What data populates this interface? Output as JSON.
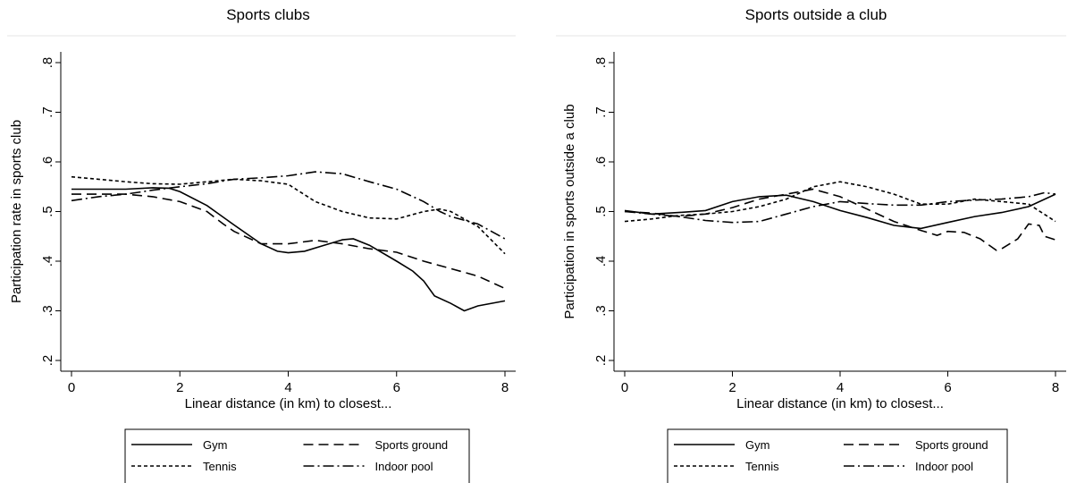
{
  "chart_data": [
    {
      "type": "line",
      "title": "Sports clubs",
      "xlabel": "Linear distance (in km) to closest...",
      "ylabel": "Participation rate in sports club",
      "xlim": [
        0,
        8
      ],
      "ylim": [
        0.2,
        0.8
      ],
      "xticks": [
        0,
        2,
        4,
        6,
        8
      ],
      "xtick_labels": [
        "0",
        "2",
        "4",
        "6",
        "8"
      ],
      "yticks": [
        0.2,
        0.3,
        0.4,
        0.5,
        0.6,
        0.7,
        0.8
      ],
      "ytick_labels": [
        ".2",
        ".3",
        ".4",
        ".5",
        ".6",
        ".7",
        ".8"
      ],
      "grid": false,
      "legend_position": "bottom",
      "series": [
        {
          "name": "Gym",
          "style": "solid",
          "x": [
            0,
            0.5,
            1,
            1.5,
            1.8,
            2,
            2.5,
            3,
            3.5,
            3.8,
            4,
            4.3,
            4.6,
            5,
            5.2,
            5.5,
            6,
            6.3,
            6.5,
            6.7,
            7,
            7.25,
            7.5,
            8
          ],
          "y": [
            0.545,
            0.545,
            0.545,
            0.548,
            0.547,
            0.54,
            0.512,
            0.473,
            0.435,
            0.42,
            0.417,
            0.42,
            0.43,
            0.443,
            0.445,
            0.432,
            0.4,
            0.38,
            0.36,
            0.33,
            0.315,
            0.3,
            0.31,
            0.32
          ]
        },
        {
          "name": "Sports ground",
          "style": "dashed",
          "x": [
            0,
            0.5,
            1,
            1.5,
            2,
            2.5,
            2.8,
            3,
            3.5,
            4,
            4.5,
            5,
            5.5,
            6,
            6.5,
            7,
            7.5,
            8
          ],
          "y": [
            0.535,
            0.535,
            0.535,
            0.53,
            0.52,
            0.5,
            0.475,
            0.46,
            0.435,
            0.435,
            0.442,
            0.435,
            0.425,
            0.418,
            0.4,
            0.385,
            0.37,
            0.345
          ]
        },
        {
          "name": "Tennis",
          "style": "short-dash",
          "x": [
            0,
            0.5,
            1,
            1.5,
            2,
            2.5,
            3,
            3.5,
            4,
            4.5,
            5,
            5.5,
            6,
            6.5,
            6.8,
            7,
            7.5,
            8
          ],
          "y": [
            0.57,
            0.565,
            0.56,
            0.556,
            0.555,
            0.56,
            0.565,
            0.562,
            0.555,
            0.52,
            0.5,
            0.487,
            0.485,
            0.5,
            0.505,
            0.5,
            0.47,
            0.415
          ]
        },
        {
          "name": "Indoor pool",
          "style": "dash-dot",
          "x": [
            0,
            0.5,
            1,
            1.5,
            2,
            2.5,
            3,
            3.5,
            4,
            4.5,
            5,
            5.5,
            6,
            6.5,
            6.8,
            7,
            7.5,
            8
          ],
          "y": [
            0.522,
            0.53,
            0.535,
            0.543,
            0.55,
            0.556,
            0.565,
            0.568,
            0.572,
            0.58,
            0.576,
            0.56,
            0.545,
            0.52,
            0.5,
            0.49,
            0.475,
            0.445
          ]
        }
      ]
    },
    {
      "type": "line",
      "title": "Sports outside a club",
      "xlabel": "Linear distance (in km) to closest...",
      "ylabel": "Participation in sports outside a club",
      "xlim": [
        0,
        8
      ],
      "ylim": [
        0.2,
        0.8
      ],
      "xticks": [
        0,
        2,
        4,
        6,
        8
      ],
      "xtick_labels": [
        "0",
        "2",
        "4",
        "6",
        "8"
      ],
      "yticks": [
        0.2,
        0.3,
        0.4,
        0.5,
        0.6,
        0.7,
        0.8
      ],
      "ytick_labels": [
        ".2",
        ".3",
        ".4",
        ".5",
        ".6",
        ".7",
        ".8"
      ],
      "grid": false,
      "legend_position": "bottom",
      "series": [
        {
          "name": "Gym",
          "style": "solid",
          "x": [
            0,
            0.5,
            1,
            1.5,
            2,
            2.5,
            3,
            3.5,
            4,
            4.5,
            5,
            5.5,
            6,
            6.5,
            7,
            7.5,
            8
          ],
          "y": [
            0.502,
            0.495,
            0.498,
            0.502,
            0.52,
            0.53,
            0.533,
            0.52,
            0.502,
            0.488,
            0.472,
            0.466,
            0.478,
            0.49,
            0.498,
            0.51,
            0.535
          ]
        },
        {
          "name": "Sports ground",
          "style": "dashed",
          "x": [
            0,
            0.5,
            1,
            1.5,
            2,
            2.5,
            3,
            3.5,
            4,
            4.5,
            5,
            5.5,
            5.8,
            6,
            6.3,
            6.6,
            6.9,
            7,
            7.3,
            7.5,
            7.7,
            7.8,
            8
          ],
          "y": [
            0.5,
            0.497,
            0.49,
            0.495,
            0.508,
            0.525,
            0.535,
            0.545,
            0.53,
            0.505,
            0.48,
            0.462,
            0.452,
            0.46,
            0.458,
            0.445,
            0.422,
            0.425,
            0.445,
            0.475,
            0.472,
            0.45,
            0.443
          ]
        },
        {
          "name": "Tennis",
          "style": "short-dash",
          "x": [
            0,
            0.5,
            1,
            1.5,
            2,
            2.5,
            3,
            3.5,
            4,
            4.5,
            5,
            5.5,
            6,
            6.5,
            7,
            7.5,
            8
          ],
          "y": [
            0.48,
            0.485,
            0.492,
            0.495,
            0.5,
            0.51,
            0.525,
            0.55,
            0.56,
            0.55,
            0.535,
            0.515,
            0.515,
            0.525,
            0.52,
            0.515,
            0.48
          ]
        },
        {
          "name": "Indoor pool",
          "style": "dash-dot",
          "x": [
            0,
            0.5,
            1,
            1.5,
            2,
            2.5,
            3,
            3.5,
            4,
            4.5,
            5,
            5.5,
            6,
            6.5,
            7,
            7.5,
            7.8,
            8
          ],
          "y": [
            0.5,
            0.495,
            0.49,
            0.482,
            0.478,
            0.48,
            0.495,
            0.51,
            0.52,
            0.516,
            0.513,
            0.513,
            0.52,
            0.523,
            0.525,
            0.53,
            0.538,
            0.535
          ]
        }
      ]
    }
  ]
}
